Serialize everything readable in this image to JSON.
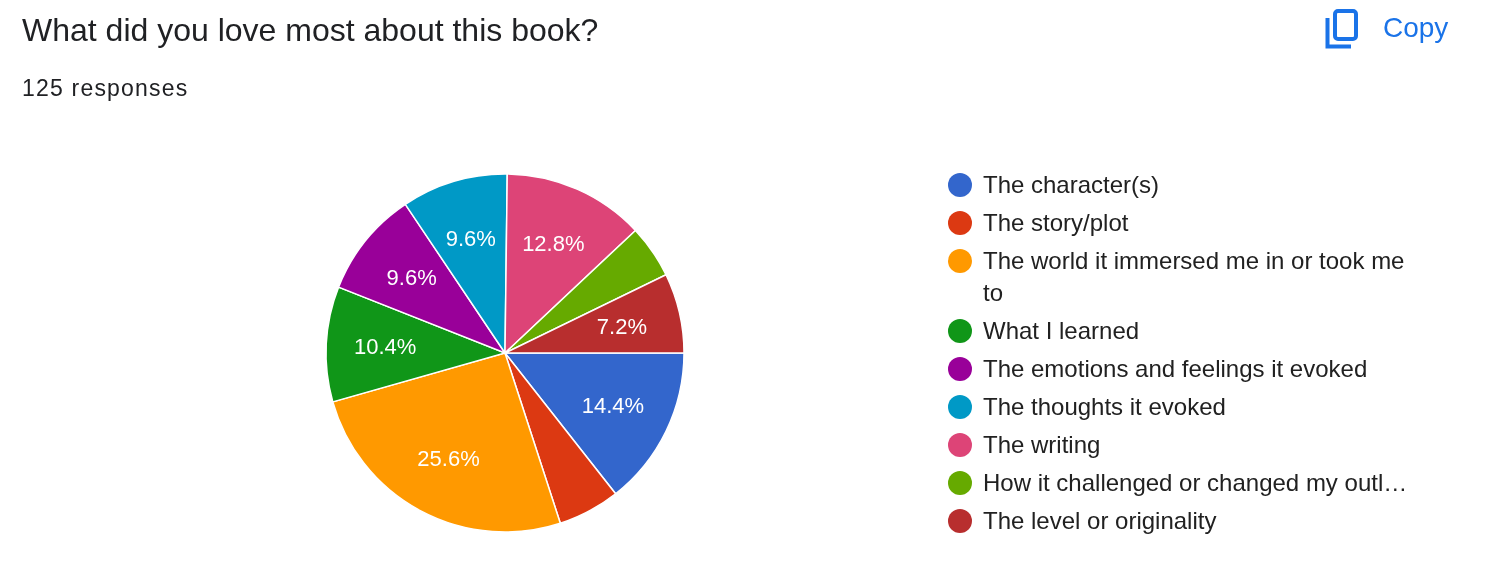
{
  "chart_data": {
    "type": "pie",
    "title": "What did you love most about this book?",
    "subtitle": "125 responses",
    "annotations": [
      "Copy"
    ],
    "categories": [
      "The character(s)",
      "The story/plot",
      "The world it immersed me in or took me to",
      "What I learned",
      "The emotions and feelings it evoked",
      "The thoughts it evoked",
      "The writing",
      "How it challenged or changed my outl…",
      "The level or originality"
    ],
    "values": [
      14.4,
      5.6,
      25.6,
      10.4,
      9.6,
      9.6,
      12.8,
      4.8,
      7.2
    ],
    "colors": [
      "#3366cc",
      "#dc3912",
      "#ff9900",
      "#109618",
      "#990099",
      "#0099c6",
      "#dd4477",
      "#66aa00",
      "#b82e2e"
    ],
    "value_labels": [
      "14.4%",
      null,
      "25.6%",
      "10.4%",
      "9.6%",
      "9.6%",
      "12.8%",
      null,
      "7.2%"
    ],
    "legend": "right"
  }
}
